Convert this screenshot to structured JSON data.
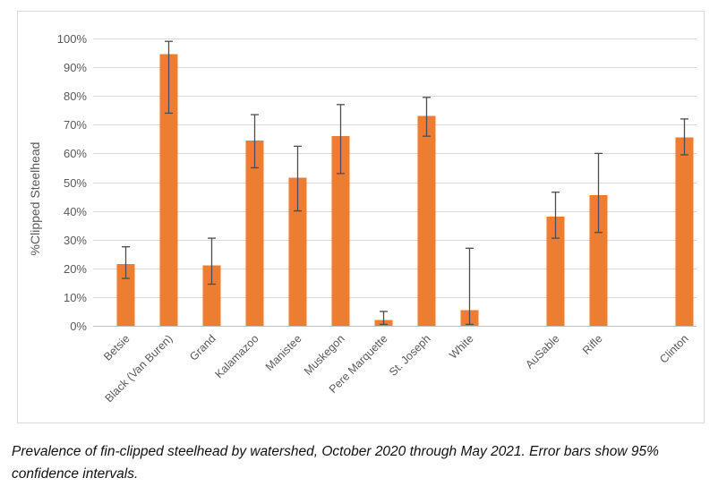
{
  "chart_data": {
    "type": "bar",
    "title": "",
    "xlabel": "",
    "ylabel": "%Clipped Steelhead",
    "ylim": [
      0,
      100
    ],
    "grid": true,
    "legend": "none",
    "y_tick_labels": [
      "0%",
      "10%",
      "20%",
      "30%",
      "40%",
      "50%",
      "60%",
      "70%",
      "80%",
      "90%",
      "100%"
    ],
    "categories": [
      "Betsie",
      "Black (Van Buren)",
      "Grand",
      "Kalamazoo",
      "Manistee",
      "Muskegon",
      "Pere Marquette",
      "St. Joseph",
      "White",
      "AuSable",
      "Rifle",
      "Clinton"
    ],
    "values": [
      21.5,
      94.5,
      21,
      64.5,
      51.5,
      66,
      2,
      73,
      5.5,
      38,
      45.5,
      65.5
    ],
    "n_slots": 14,
    "points": [
      {
        "category": "Betsie",
        "slot": 0,
        "value": 21.5,
        "ci_low": 16.5,
        "ci_high": 27.5
      },
      {
        "category": "Black (Van Buren)",
        "slot": 1,
        "value": 94.5,
        "ci_low": 74,
        "ci_high": 99
      },
      {
        "category": "Grand",
        "slot": 2,
        "value": 21,
        "ci_low": 14.5,
        "ci_high": 30.5
      },
      {
        "category": "Kalamazoo",
        "slot": 3,
        "value": 64.5,
        "ci_low": 55,
        "ci_high": 73.5
      },
      {
        "category": "Manistee",
        "slot": 4,
        "value": 51.5,
        "ci_low": 40,
        "ci_high": 62.5
      },
      {
        "category": "Muskegon",
        "slot": 5,
        "value": 66,
        "ci_low": 53,
        "ci_high": 77
      },
      {
        "category": "Pere Marquette",
        "slot": 6,
        "value": 2,
        "ci_low": 0.5,
        "ci_high": 5
      },
      {
        "category": "St. Joseph",
        "slot": 7,
        "value": 73,
        "ci_low": 66,
        "ci_high": 79.5
      },
      {
        "category": "White",
        "slot": 8,
        "value": 5.5,
        "ci_low": 0.5,
        "ci_high": 27
      },
      {
        "category": "AuSable",
        "slot": 10,
        "value": 38,
        "ci_low": 30.5,
        "ci_high": 46.5
      },
      {
        "category": "Rifle",
        "slot": 11,
        "value": 45.5,
        "ci_low": 32.5,
        "ci_high": 60
      },
      {
        "category": "Clinton",
        "slot": 13,
        "value": 65.5,
        "ci_low": 59.5,
        "ci_high": 72
      }
    ],
    "colors": {
      "bar": "#ED7D31",
      "error_bar": "#4D4D4D",
      "gridline": "#D9D9D9",
      "axis_line": "#BFBFBF",
      "tick_text": "#595959",
      "frame_border": "#D9D9D9"
    }
  },
  "caption": {
    "lines": [
      "Prevalence of fin-clipped steelhead by watershed, October 2020 through May 2021. Error bars show 95%",
      "confidence intervals."
    ]
  }
}
